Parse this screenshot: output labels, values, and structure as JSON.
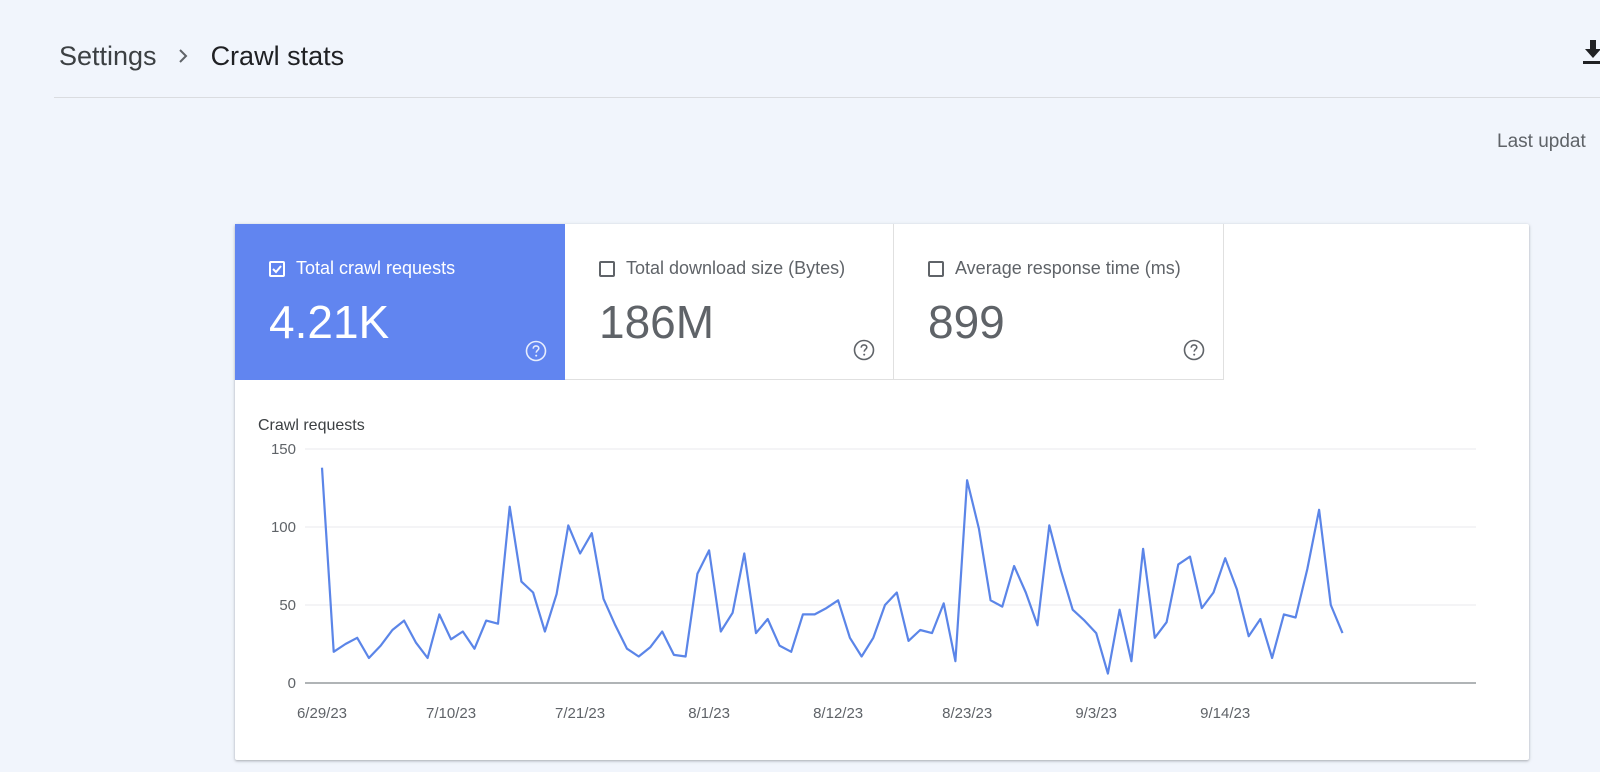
{
  "breadcrumb": {
    "parent": "Settings",
    "current": "Crawl stats"
  },
  "header": {
    "last_updated": "Last updat"
  },
  "metrics": [
    {
      "label": "Total crawl requests",
      "value": "4.21K",
      "checked": true
    },
    {
      "label": "Total download size (Bytes)",
      "value": "186M",
      "checked": false
    },
    {
      "label": "Average response time (ms)",
      "value": "899",
      "checked": false
    }
  ],
  "colors": {
    "accent": "#6185f0",
    "line": "#5b85e8",
    "background": "#f1f5fc"
  },
  "icons": {
    "breadcrumb_separator": "chevron-right-icon",
    "download": "download-icon",
    "help": "help-circle-icon",
    "checkbox": "checkbox-icon"
  },
  "chart_data": {
    "type": "line",
    "title": "Crawl requests",
    "xlabel": "",
    "ylabel": "",
    "ylim": [
      0,
      150
    ],
    "yticks": [
      0,
      50,
      100,
      150
    ],
    "xtick_labels": [
      "6/29/23",
      "7/10/23",
      "7/21/23",
      "8/1/23",
      "8/12/23",
      "8/23/23",
      "9/3/23",
      "9/14/23"
    ],
    "x_start": "6/29/23",
    "x_end": "9/26/23",
    "grid": true,
    "series": [
      {
        "values": [
          138,
          20,
          25,
          29,
          16,
          24,
          34,
          40,
          26,
          16,
          44,
          28,
          33,
          22,
          40,
          38,
          113,
          65,
          58,
          33,
          57,
          101,
          83,
          96,
          54,
          37,
          22,
          17,
          23,
          33,
          18,
          17,
          70,
          85,
          33,
          45,
          83,
          32,
          41,
          24,
          20,
          44,
          44,
          48,
          53,
          29,
          17,
          29,
          50,
          58,
          27,
          34,
          32,
          51,
          14,
          130,
          99,
          53,
          49,
          75,
          58,
          37,
          101,
          72,
          47,
          40,
          32,
          6,
          47,
          14,
          86,
          29,
          39,
          76,
          81,
          48,
          58,
          80,
          60,
          30,
          41,
          16,
          44,
          42,
          73,
          111,
          50,
          32
        ]
      }
    ]
  }
}
